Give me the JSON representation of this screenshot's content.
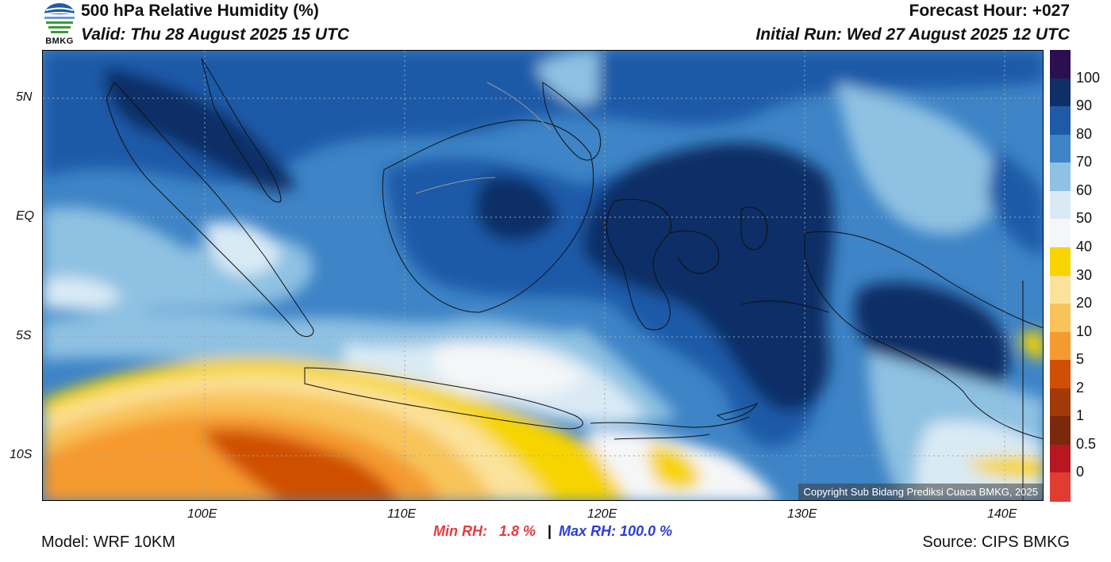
{
  "header": {
    "title": "500 hPa Relative Humidity (%)",
    "valid": "Valid: Thu 28 August 2025 15 UTC",
    "forecast_hour": "Forecast Hour: +027",
    "initial_run": "Initial Run: Wed 27 August 2025 12 UTC",
    "logo_text": "BMKG"
  },
  "map": {
    "lat_labels": [
      "5N",
      "EQ",
      "5S",
      "10S"
    ],
    "lon_labels": [
      "100E",
      "110E",
      "120E",
      "130E",
      "140E"
    ],
    "copyright": "Copyright Sub Bidang Prediksi Cuaca BMKG, 2025"
  },
  "colorbar": {
    "labels": [
      "100",
      "90",
      "80",
      "70",
      "60",
      "50",
      "40",
      "30",
      "20",
      "10",
      "5",
      "2",
      "1",
      "0.5",
      "0"
    ],
    "colors": [
      "#2c0f4f",
      "#0f2f66",
      "#1f5aa8",
      "#3e84c6",
      "#8ec1e2",
      "#d9eaf5",
      "#f5f6f7",
      "#f7d400",
      "#fbe29a",
      "#f8c45a",
      "#f59a2e",
      "#cf4f05",
      "#a13a08",
      "#7a2a0a",
      "#b71720",
      "#e03c31"
    ]
  },
  "stats": {
    "min_label": "Min RH:",
    "min_value": "1.8 %",
    "separator": "|",
    "max_label": "Max RH:",
    "max_value": "100.0 %"
  },
  "footer": {
    "model": "Model: WRF 10KM",
    "source": "Source: CIPS BMKG"
  }
}
